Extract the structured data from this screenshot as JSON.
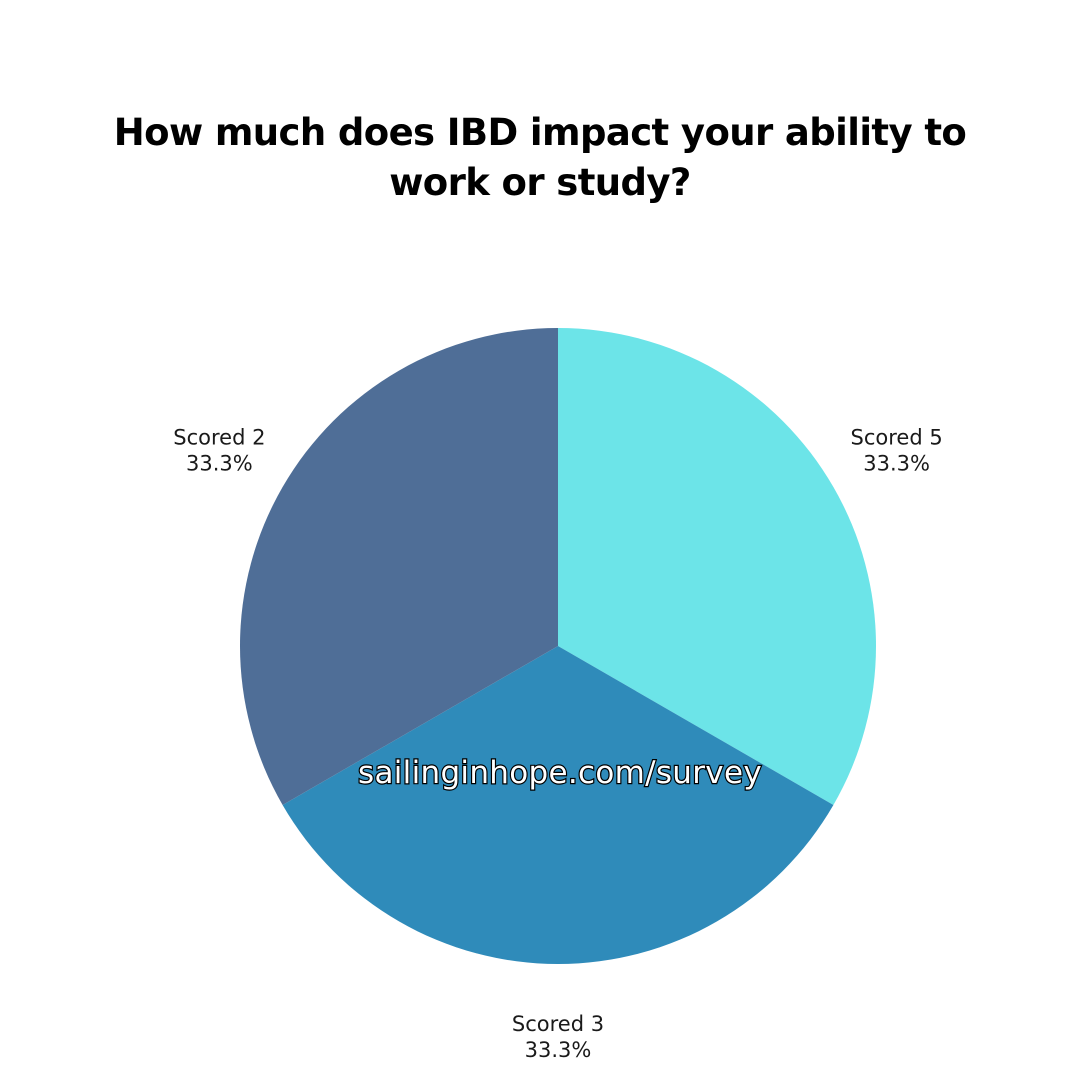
{
  "chart_data": {
    "type": "pie",
    "title": "How much does IBD impact your ability to work or study?",
    "slices": [
      {
        "label": "Scored 5",
        "value": 33.3,
        "value_label": "33.3%",
        "color": "#6ce4e8"
      },
      {
        "label": "Scored 3",
        "value": 33.3,
        "value_label": "33.3%",
        "color": "#2f8bba"
      },
      {
        "label": "Scored 2",
        "value": 33.3,
        "value_label": "33.3%",
        "color": "#4f6e97"
      }
    ],
    "start_angle_deg": 0,
    "direction": "clockwise"
  },
  "watermark": "sailinginhope.com/survey"
}
